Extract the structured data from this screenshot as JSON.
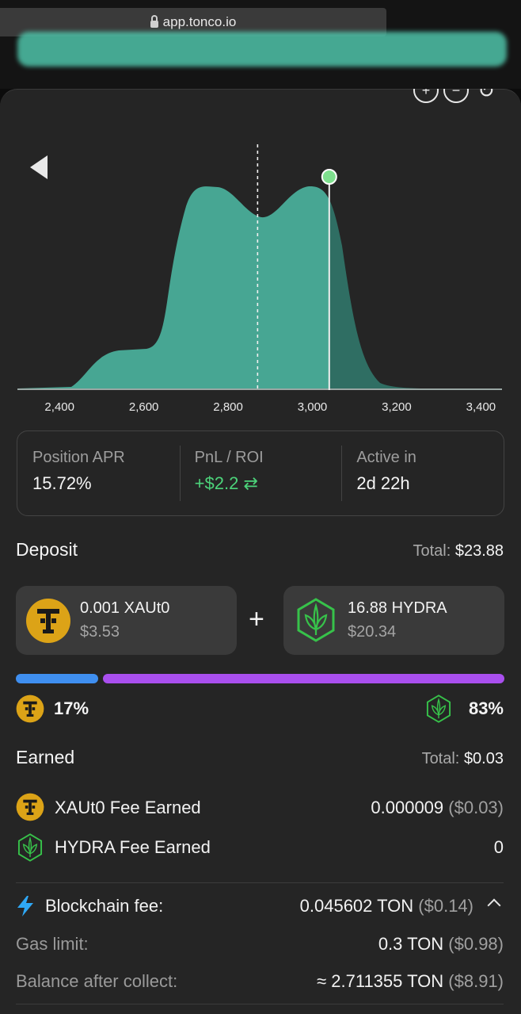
{
  "browser": {
    "url": "app.tonco.io"
  },
  "chart_data": {
    "type": "area",
    "x_ticks": [
      "2,400",
      "2,600",
      "2,800",
      "3,000",
      "3,200",
      "3,400"
    ],
    "xlim": [
      2300,
      3450
    ],
    "current_price": 2870,
    "range_upper": 3040,
    "colors": {
      "fill": "#47a693",
      "fill_out": "#2f6e63",
      "marker": "#7ee08e"
    }
  },
  "stats": {
    "apr_label": "Position APR",
    "apr_value": "15.72%",
    "pnl_label": "PnL / ROI",
    "pnl_value": "+$2.2 ⇄",
    "active_label": "Active in",
    "active_value": "2d 22h"
  },
  "deposit": {
    "title": "Deposit",
    "total_label": "Total:",
    "total_value": "$23.88",
    "token_a": {
      "amount": "0.001 XAUt0",
      "usd": "$3.53",
      "icon": "xaut0-icon"
    },
    "token_b": {
      "amount": "16.88 HYDRA",
      "usd": "$20.34",
      "icon": "hydra-icon"
    },
    "plus": "+",
    "ratio_a": "17%",
    "ratio_b": "83%",
    "ratio_a_fraction": 0.17,
    "colors": {
      "a": "#3f8ff0",
      "b": "#a94fee"
    }
  },
  "earned": {
    "title": "Earned",
    "total_label": "Total:",
    "total_value": "$0.03",
    "xaut_label": "XAUt0 Fee Earned",
    "xaut_value": "0.000009",
    "xaut_usd": "($0.03)",
    "hydra_label": "HYDRA Fee Earned",
    "hydra_value": "0"
  },
  "fees": {
    "blockchain_label": "Blockchain fee:",
    "blockchain_value": "0.045602 TON",
    "blockchain_usd": "($0.14)",
    "gas_label": "Gas limit:",
    "gas_value": "0.3 TON",
    "gas_usd": "($0.98)",
    "balance_label": "Balance after collect:",
    "balance_value": "≈ 2.711355 TON",
    "balance_usd": "($8.91)"
  }
}
